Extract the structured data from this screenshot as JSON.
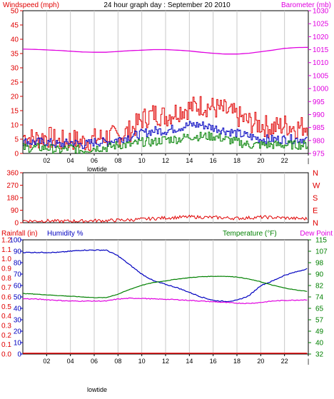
{
  "title": "24 hour graph day : September 20 2010",
  "colors": {
    "wind": "#e00000",
    "gust": "#e00000",
    "avg": "#0000c0",
    "low": "#008000",
    "baro": "#e000e0",
    "humidity": "#0000c0",
    "temp": "#008000",
    "dew": "#e000e0",
    "rain": "#e00000",
    "grid": "#c8c8c8"
  },
  "chart_data": [
    {
      "type": "line",
      "left_label": "Windspeed (mph)",
      "right_label": "Barometer (mb)",
      "x_ticks": [
        "02",
        "04",
        "06",
        "08",
        "10",
        "12",
        "14",
        "16",
        "18",
        "20",
        "22",
        "|"
      ],
      "x_marker": "lowtide",
      "left_ylim": [
        0,
        50
      ],
      "left_ticks": [
        "0",
        "5",
        "10",
        "15",
        "20",
        "25",
        "30",
        "35",
        "40",
        "45",
        "50"
      ],
      "right_ylim": [
        975,
        1030
      ],
      "right_ticks": [
        "975",
        "980",
        "985",
        "990",
        "995",
        "1000",
        "1005",
        "1010",
        "1015",
        "1020",
        "1025",
        "1030"
      ],
      "hours": [
        0,
        1,
        2,
        3,
        4,
        5,
        6,
        7,
        8,
        9,
        10,
        11,
        12,
        13,
        14,
        15,
        16,
        17,
        18,
        19,
        20,
        21,
        22,
        23,
        24
      ],
      "series": [
        {
          "axis": "left",
          "values": [
            6,
            5,
            6,
            4,
            5,
            4,
            5,
            6,
            6,
            8,
            12,
            14,
            13,
            15,
            16,
            17,
            16,
            15,
            13,
            11,
            10,
            9,
            10,
            9,
            10
          ]
        },
        {
          "axis": "left",
          "values": [
            4,
            4,
            4,
            3,
            4,
            3,
            4,
            4,
            5,
            6,
            7,
            8,
            8,
            9,
            10,
            10,
            9,
            8,
            7,
            6,
            5,
            5,
            5,
            5,
            5
          ]
        },
        {
          "axis": "left",
          "values": [
            2,
            2,
            2,
            1,
            2,
            1,
            2,
            2,
            3,
            3,
            4,
            4,
            5,
            5,
            6,
            6,
            6,
            5,
            4,
            3,
            3,
            3,
            3,
            3,
            3
          ]
        },
        {
          "axis": "right",
          "values": [
            1015.2,
            1015.1,
            1014.9,
            1014.7,
            1014.4,
            1014.1,
            1014.0,
            1014.0,
            1014.3,
            1014.6,
            1014.8,
            1015.0,
            1015.0,
            1014.8,
            1014.5,
            1014.0,
            1013.6,
            1013.3,
            1013.3,
            1013.6,
            1014.2,
            1014.8,
            1015.5,
            1015.8,
            1015.9
          ]
        }
      ]
    },
    {
      "type": "line",
      "right_label_letters": [
        "N",
        "W",
        "S",
        "E",
        "N"
      ],
      "ylim": [
        0,
        360
      ],
      "y_ticks": [
        "0",
        "90",
        "180",
        "270",
        "360"
      ],
      "x_ticks": [
        "02",
        "04",
        "06",
        "08",
        "10",
        "12",
        "14",
        "16",
        "18",
        "20",
        "22",
        "|"
      ],
      "hours": [
        0,
        1,
        2,
        3,
        4,
        5,
        6,
        7,
        8,
        9,
        10,
        11,
        12,
        13,
        14,
        15,
        16,
        17,
        18,
        19,
        20,
        21,
        22,
        23,
        24
      ],
      "series": [
        {
          "values": [
            15,
            12,
            14,
            10,
            12,
            12,
            15,
            15,
            18,
            20,
            25,
            30,
            35,
            38,
            42,
            40,
            38,
            35,
            32,
            35,
            40,
            38,
            35,
            30,
            28
          ]
        }
      ]
    },
    {
      "type": "line",
      "left_label_rain": "Rainfall (in)",
      "left_label_hum": "Humidity %",
      "right_label_temp": "Temperature (°F)",
      "right_label_dew": "Dew Point",
      "x_ticks": [
        "02",
        "04",
        "06",
        "08",
        "10",
        "12",
        "14",
        "16",
        "18",
        "20",
        "22",
        "|"
      ],
      "x_marker": "lowtide",
      "rain_ticks": [
        "0.0",
        "0.1",
        "0.2",
        "0.3",
        "0.4",
        "0.5",
        "0.6",
        "0.7",
        "0.8",
        "0.9",
        "1.0",
        "1.1",
        "1.2"
      ],
      "hum_ylim": [
        0,
        100
      ],
      "hum_ticks": [
        "0",
        "10",
        "20",
        "30",
        "40",
        "50",
        "60",
        "70",
        "80",
        "90",
        "100"
      ],
      "temp_ylim": [
        32,
        115
      ],
      "temp_ticks": [
        "32",
        "40",
        "49",
        "57",
        "65",
        "74",
        "82",
        "90",
        "98",
        "107",
        "115"
      ],
      "hours": [
        0,
        1,
        2,
        3,
        4,
        5,
        6,
        7,
        8,
        9,
        10,
        11,
        12,
        13,
        14,
        15,
        16,
        17,
        18,
        19,
        20,
        21,
        22,
        23,
        24
      ],
      "series": [
        {
          "axis": "hum",
          "values": [
            89,
            89,
            89,
            89,
            90,
            91,
            91,
            91,
            86,
            78,
            70,
            64,
            61,
            58,
            54,
            50,
            47,
            46,
            47,
            51,
            60,
            64,
            69,
            72,
            75
          ]
        },
        {
          "axis": "temp",
          "values": [
            76.0,
            75.6,
            75.0,
            74.5,
            74.0,
            73.5,
            73.0,
            73.0,
            75.5,
            79.0,
            82.0,
            84.0,
            85.2,
            86.5,
            87.5,
            88.2,
            88.5,
            88.5,
            88.0,
            86.5,
            84.5,
            82.0,
            80.0,
            78.5,
            77.5
          ]
        },
        {
          "axis": "temp",
          "values": [
            72.2,
            72.0,
            71.5,
            71.0,
            70.5,
            70.5,
            70.5,
            70.5,
            72.0,
            72.5,
            72.5,
            72.0,
            71.8,
            71.5,
            71.0,
            70.5,
            70.0,
            69.5,
            69.0,
            68.8,
            69.5,
            70.5,
            71.0,
            71.2,
            71.5
          ]
        },
        {
          "axis": "rain",
          "values": [
            0,
            0,
            0,
            0,
            0,
            0,
            0,
            0,
            0,
            0,
            0,
            0,
            0,
            0,
            0,
            0,
            0,
            0,
            0,
            0,
            0,
            0,
            0,
            0,
            0
          ]
        }
      ]
    }
  ]
}
